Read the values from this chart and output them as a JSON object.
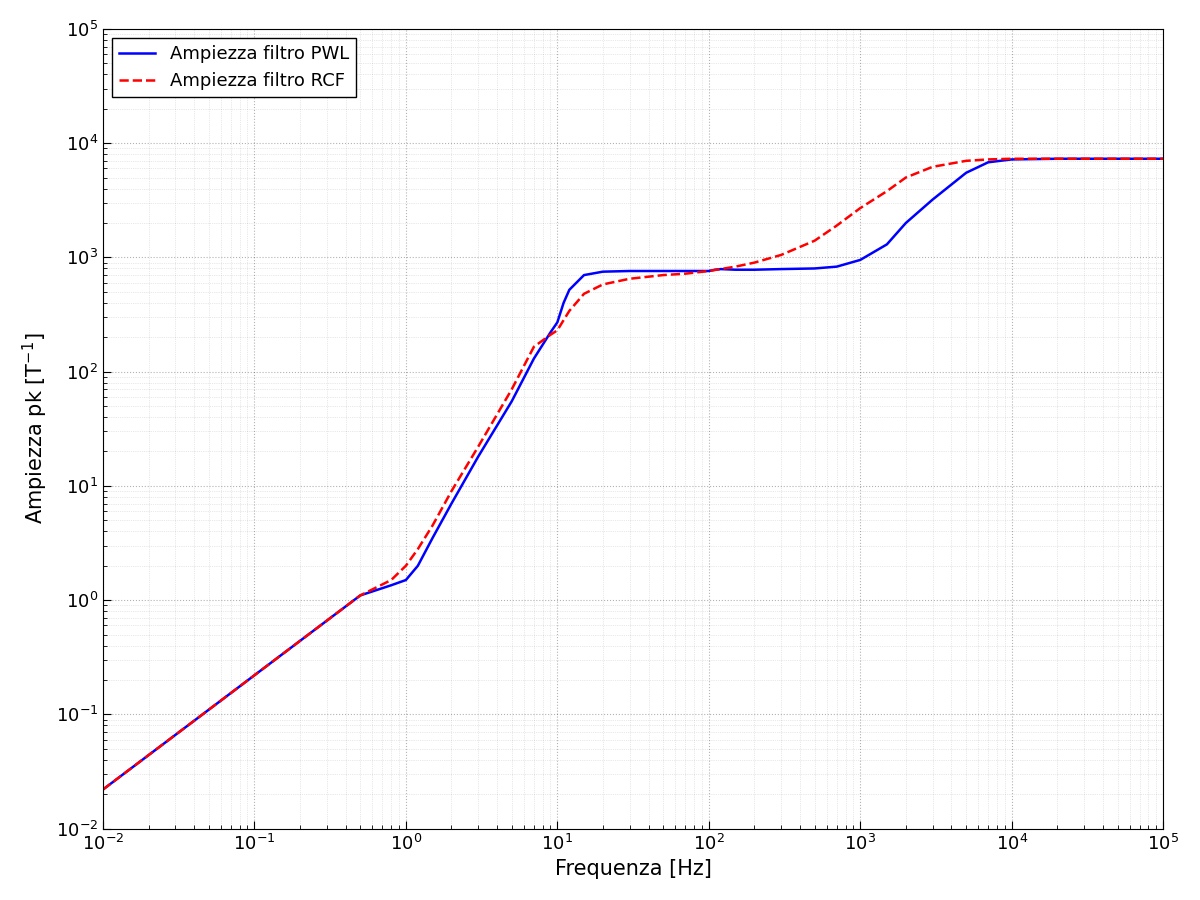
{
  "xlabel": "Frequenza [Hz]",
  "ylabel": "Ampiezza pk [T$^{-1}$]",
  "xlim": [
    0.01,
    100000.0
  ],
  "ylim": [
    0.01,
    100000.0
  ],
  "legend_pwl": "Ampiezza filtro PWL",
  "legend_rcf": "Ampiezza filtro RCF",
  "pwl_color": "#0000ff",
  "rcf_color": "#ff0000",
  "pwl_linewidth": 1.8,
  "rcf_linewidth": 1.8,
  "background_color": "#ffffff",
  "grid_color": "#000000",
  "grid_alpha": 0.3,
  "grid_linestyle": ":",
  "figsize": [
    12,
    9
  ],
  "dpi": 100,
  "pwl_x": [
    0.01,
    0.05,
    0.1,
    0.2,
    0.5,
    0.8,
    1.0,
    1.2,
    1.5,
    2.0,
    3.0,
    5.0,
    7.0,
    9.0,
    10.0,
    11.0,
    12.0,
    15.0,
    20.0,
    30.0,
    50.0,
    80.0,
    100.0,
    110.0,
    120.0,
    150.0,
    200.0,
    300.0,
    500.0,
    700.0,
    1000.0,
    1500.0,
    2000.0,
    3000.0,
    5000.0,
    7000.0,
    10000.0,
    20000.0,
    50000.0,
    100000.0
  ],
  "pwl_y": [
    0.022,
    0.11,
    0.22,
    0.44,
    1.1,
    1.35,
    1.5,
    2.0,
    3.5,
    7.0,
    18.0,
    55.0,
    130.0,
    220.0,
    270.0,
    400.0,
    520.0,
    700.0,
    750.0,
    760.0,
    760.0,
    760.0,
    760.0,
    780.0,
    790.0,
    780.0,
    780.0,
    790.0,
    800.0,
    830.0,
    950.0,
    1300.0,
    2000.0,
    3200.0,
    5500.0,
    6800.0,
    7200.0,
    7300.0,
    7300.0,
    7300.0
  ],
  "rcf_x": [
    0.01,
    0.05,
    0.1,
    0.2,
    0.5,
    0.8,
    1.0,
    1.2,
    1.5,
    2.0,
    3.0,
    5.0,
    7.0,
    9.0,
    10.0,
    12.0,
    15.0,
    20.0,
    30.0,
    50.0,
    70.0,
    100.0,
    150.0,
    200.0,
    300.0,
    500.0,
    700.0,
    1000.0,
    1500.0,
    2000.0,
    3000.0,
    5000.0,
    7000.0,
    10000.0,
    20000.0,
    50000.0,
    100000.0
  ],
  "rcf_y": [
    0.022,
    0.11,
    0.22,
    0.44,
    1.1,
    1.5,
    2.0,
    2.8,
    4.5,
    9.0,
    22.0,
    70.0,
    165.0,
    210.0,
    230.0,
    340.0,
    480.0,
    580.0,
    650.0,
    700.0,
    720.0,
    760.0,
    830.0,
    900.0,
    1050.0,
    1400.0,
    1900.0,
    2700.0,
    3800.0,
    5000.0,
    6200.0,
    7000.0,
    7200.0,
    7300.0,
    7300.0,
    7300.0,
    7300.0
  ]
}
